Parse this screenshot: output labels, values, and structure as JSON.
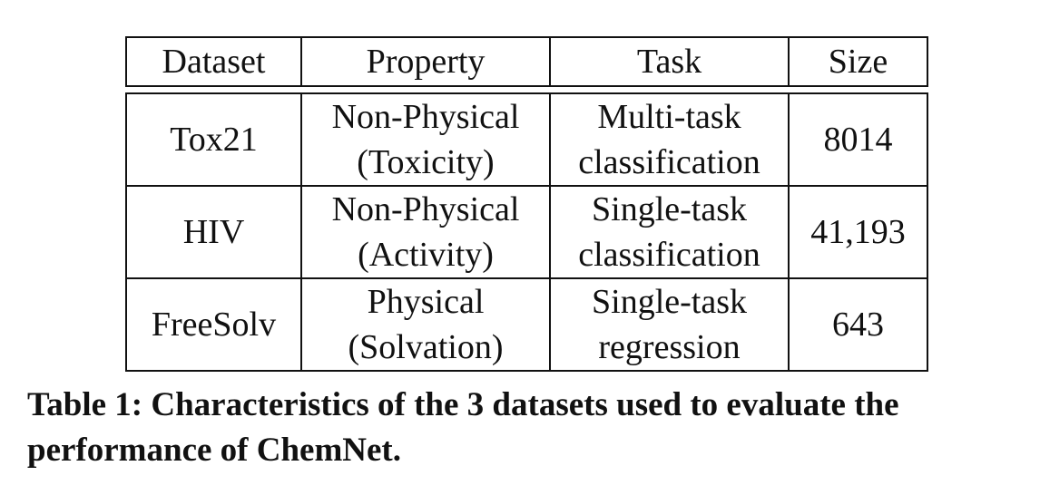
{
  "table": {
    "headers": [
      "Dataset",
      "Property",
      "Task",
      "Size"
    ],
    "rows": [
      {
        "dataset": "Tox21",
        "property": [
          "Non-Physical",
          "(Toxicity)"
        ],
        "task": [
          "Multi-task",
          "classification"
        ],
        "size": "8014"
      },
      {
        "dataset": "HIV",
        "property": [
          "Non-Physical",
          "(Activity)"
        ],
        "task": [
          "Single-task",
          "classification"
        ],
        "size": "41,193"
      },
      {
        "dataset": "FreeSolv",
        "property": [
          "Physical",
          "(Solvation)"
        ],
        "task": [
          "Single-task",
          "regression"
        ],
        "size": "643"
      }
    ]
  },
  "caption": {
    "line1": "Table 1: Characteristics of the 3 datasets used to evaluate the",
    "line2": "performance of ChemNet."
  }
}
